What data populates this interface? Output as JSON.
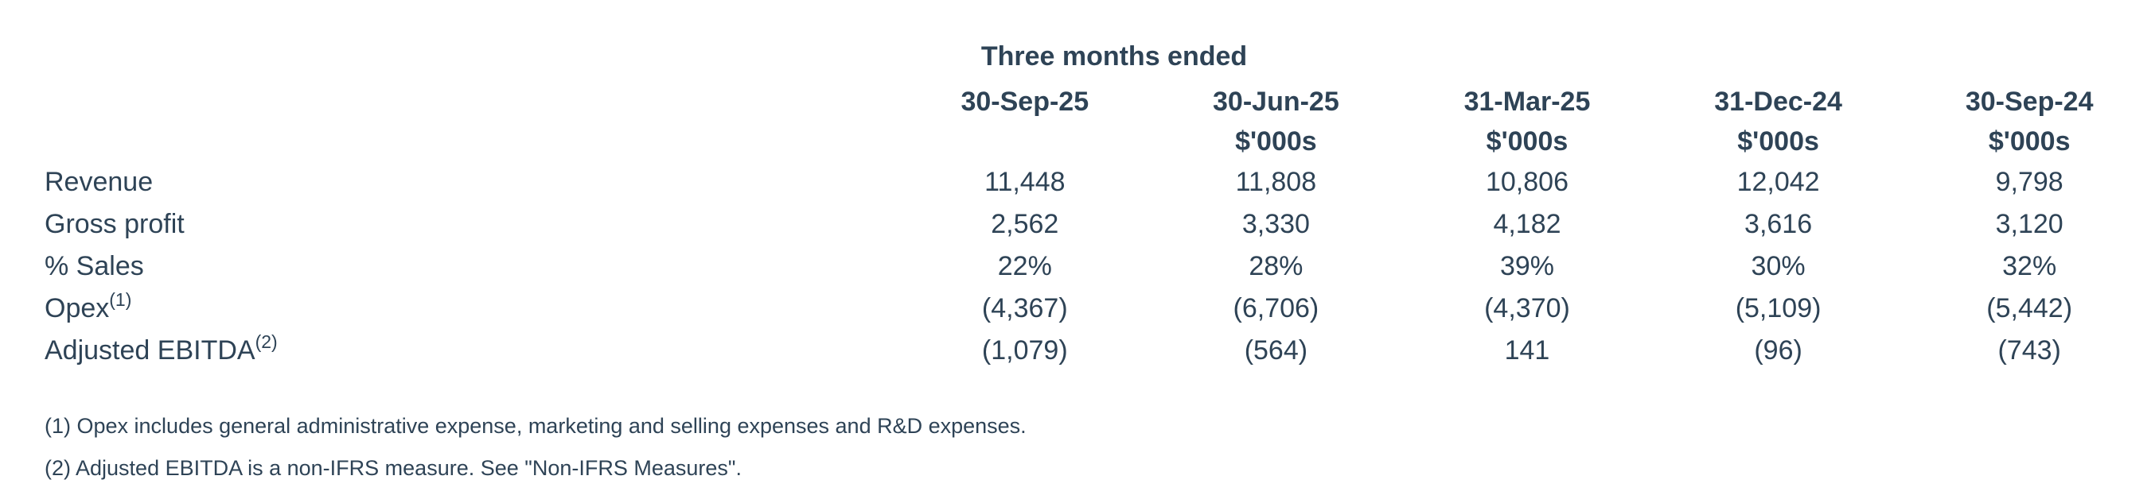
{
  "page": {
    "background": "#ffffff",
    "text_color": "#2e4356"
  },
  "table": {
    "group_header": "Three months ended",
    "columns": [
      "30-Sep-25",
      "30-Jun-25",
      "31-Mar-25",
      "31-Dec-24",
      "30-Sep-24"
    ],
    "units": [
      "",
      "$'000s",
      "$'000s",
      "$'000s",
      "$'000s"
    ],
    "rows": [
      {
        "label": "Revenue",
        "sup": "",
        "values": [
          "11,448",
          "11,808",
          "10,806",
          "12,042",
          "9,798"
        ]
      },
      {
        "label": "Gross profit",
        "sup": "",
        "values": [
          "2,562",
          "3,330",
          "4,182",
          "3,616",
          "3,120"
        ]
      },
      {
        "label": "% Sales",
        "sup": "",
        "values": [
          "22%",
          "28%",
          "39%",
          "30%",
          "32%"
        ]
      },
      {
        "label": "Opex",
        "sup": "(1)",
        "values": [
          "(4,367)",
          "(6,706)",
          "(4,370)",
          "(5,109)",
          "(5,442)"
        ]
      },
      {
        "label": "Adjusted EBITDA",
        "sup": "(2)",
        "values": [
          "(1,079)",
          "(564)",
          "141",
          "(96)",
          "(743)"
        ]
      }
    ]
  },
  "footnotes": [
    "(1) Opex includes general administrative expense, marketing and selling expenses and R&D expenses.",
    "(2) Adjusted EBITDA is a non-IFRS measure. See \"Non-IFRS Measures\"."
  ]
}
